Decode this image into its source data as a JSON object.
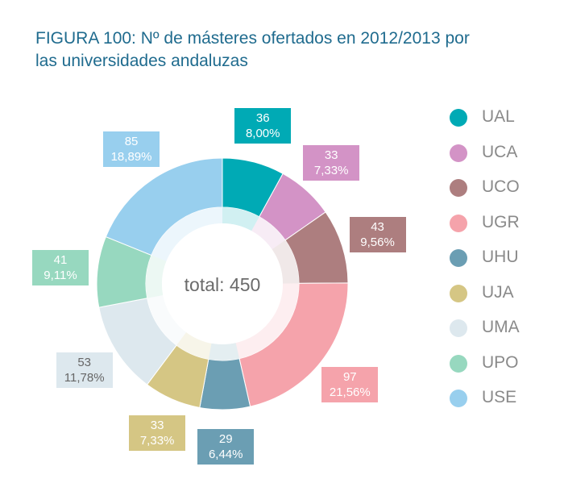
{
  "title_line1": "FIGURA 100: Nº de másteres ofertados en 2012/2013 por",
  "title_line2": "las universidades andaluzas",
  "center_label": "total: 450",
  "chart_data": {
    "type": "pie",
    "donut": true,
    "total": 450,
    "categories": [
      "UAL",
      "UCA",
      "UCO",
      "UGR",
      "UHU",
      "UJA",
      "UMA",
      "UPO",
      "USE"
    ],
    "values": [
      36,
      33,
      43,
      97,
      29,
      33,
      53,
      41,
      85
    ],
    "percent_labels": [
      "8,00%",
      "7,33%",
      "9,56%",
      "21,56%",
      "6,44%",
      "7,33%",
      "11,78%",
      "9,11%",
      "18,89%"
    ],
    "colors": [
      "#00aab5",
      "#d393c6",
      "#ad7e7f",
      "#f5a3ab",
      "#6b9eb3",
      "#d5c684",
      "#dde8ee",
      "#97d8bf",
      "#98cfee"
    ],
    "label_text_colors": [
      "#ffffff",
      "#ffffff",
      "#ffffff",
      "#ffffff",
      "#ffffff",
      "#ffffff",
      "#666666",
      "#ffffff",
      "#ffffff"
    ],
    "legend_position": "right"
  }
}
